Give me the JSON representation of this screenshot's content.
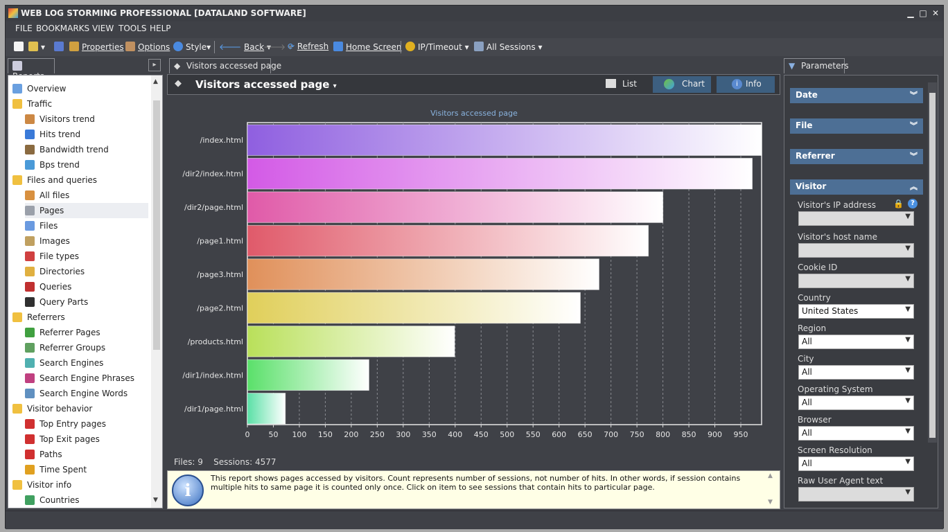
{
  "window": {
    "title": "WEB LOG STORMING PROFESSIONAL [DATALAND SOFTWARE]",
    "min": "▁",
    "max": "□",
    "close": "✕"
  },
  "menu": [
    "FILE",
    "BOOKMARKS",
    "VIEW",
    "TOOLS",
    "HELP"
  ],
  "toolbar": {
    "properties": "Properties",
    "options": "Options",
    "style": "Style",
    "back": "Back",
    "refresh": "Refresh",
    "home": "Home Screen",
    "ip_timeout": "IP/Timeout",
    "sessions": "All Sessions"
  },
  "left_panel": {
    "tab": "Reports",
    "items": [
      {
        "label": "Overview",
        "color": "#6aa0e0"
      },
      {
        "label": "Traffic",
        "color": "#f0c040"
      },
      {
        "label": "Visitors trend",
        "color": "#cc8844"
      },
      {
        "label": "Hits trend",
        "color": "#3a7ad8"
      },
      {
        "label": "Bandwidth trend",
        "color": "#8a6a40"
      },
      {
        "label": "Bps trend",
        "color": "#4a9ad8"
      },
      {
        "label": "Files and queries",
        "color": "#f0c040"
      },
      {
        "label": "All files",
        "color": "#d89040"
      },
      {
        "label": "Pages",
        "color": "#9aa0aa"
      },
      {
        "label": "Files",
        "color": "#6a9ae0"
      },
      {
        "label": "Images",
        "color": "#c0a060"
      },
      {
        "label": "File types",
        "color": "#d04040"
      },
      {
        "label": "Directories",
        "color": "#e0b040"
      },
      {
        "label": "Queries",
        "color": "#c03030"
      },
      {
        "label": "Query Parts",
        "color": "#303030"
      },
      {
        "label": "Referrers",
        "color": "#f0c040"
      },
      {
        "label": "Referrer Pages",
        "color": "#40a040"
      },
      {
        "label": "Referrer Groups",
        "color": "#60a060"
      },
      {
        "label": "Search Engines",
        "color": "#50b0b0"
      },
      {
        "label": "Search Engine Phrases",
        "color": "#c04080"
      },
      {
        "label": "Search Engine Words",
        "color": "#6090c0"
      },
      {
        "label": "Visitor behavior",
        "color": "#f0c040"
      },
      {
        "label": "Top Entry pages",
        "color": "#d03030"
      },
      {
        "label": "Top Exit pages",
        "color": "#d03030"
      },
      {
        "label": "Paths",
        "color": "#d03030"
      },
      {
        "label": "Time Spent",
        "color": "#e0a020"
      },
      {
        "label": "Visitor info",
        "color": "#f0c040"
      },
      {
        "label": "Countries",
        "color": "#40a060"
      }
    ]
  },
  "center": {
    "tab": "Visitors accessed page",
    "title": "Visitors accessed page",
    "views": {
      "list": "List",
      "chart": "Chart",
      "info": "Info"
    },
    "status": {
      "files": "Files: 9",
      "sessions": "Sessions: 4577"
    },
    "info_text": "This report shows pages accessed by visitors. Count represents number of sessions, not number of hits. In other words, if session contains multiple hits to same page it is counted only once. Click on item to see sessions that contain hits to particular page."
  },
  "chart_data": {
    "type": "bar",
    "orientation": "horizontal",
    "title": "Visitors accessed page",
    "categories": [
      "/index.html",
      "/dir2/index.html",
      "/dir2/page.html",
      "/page1.html",
      "/page3.html",
      "/page2.html",
      "/products.html",
      "/dir1/index.html",
      "/dir1/page.html"
    ],
    "values": [
      990,
      972,
      800,
      772,
      677,
      641,
      399,
      234,
      73
    ],
    "colors": [
      "#8f5fe0",
      "#d35ae6",
      "#e05aa8",
      "#e05a6a",
      "#e0905a",
      "#e0cf5a",
      "#b9e05a",
      "#5ae06a",
      "#5ae0a6"
    ],
    "xlim": [
      0,
      990
    ],
    "xticks": [
      0,
      50,
      100,
      150,
      200,
      250,
      300,
      350,
      400,
      450,
      500,
      550,
      600,
      650,
      700,
      750,
      800,
      850,
      900,
      950
    ],
    "grid": true
  },
  "right_panel": {
    "tab": "Parameters",
    "sections": [
      "Date",
      "File",
      "Referrer",
      "Visitor"
    ],
    "fields": [
      {
        "label": "Visitor's IP address",
        "value": ""
      },
      {
        "label": "Visitor's host name",
        "value": ""
      },
      {
        "label": "Cookie ID",
        "value": ""
      },
      {
        "label": "Country",
        "value": "United States"
      },
      {
        "label": "Region",
        "value": "All"
      },
      {
        "label": "City",
        "value": "All"
      },
      {
        "label": "Operating System",
        "value": "All"
      },
      {
        "label": "Browser",
        "value": "All"
      },
      {
        "label": "Screen Resolution",
        "value": "All"
      },
      {
        "label": "Raw User Agent text",
        "value": ""
      }
    ]
  }
}
